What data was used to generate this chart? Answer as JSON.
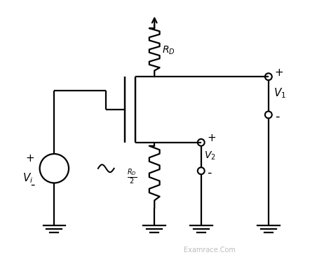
{
  "bg_color": "#ffffff",
  "line_color": "#000000",
  "watermark_color": "#b0b0b0",
  "watermark": "Examrace.Com",
  "fig_width": 4.72,
  "fig_height": 3.83,
  "dpi": 100
}
